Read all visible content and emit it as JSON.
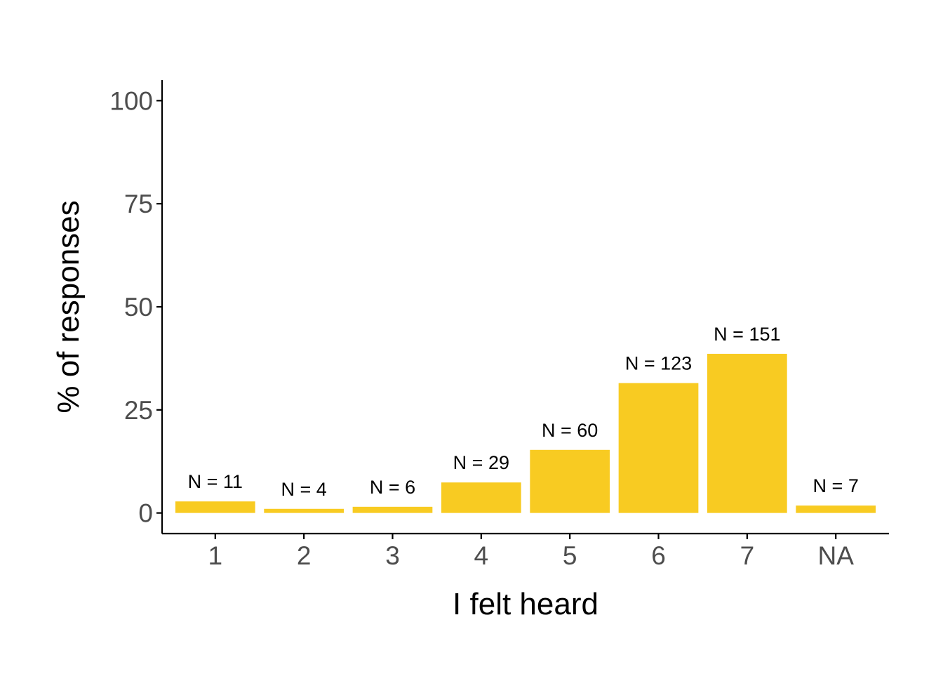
{
  "chart_data": {
    "type": "bar",
    "title": "",
    "xlabel": "I felt heard",
    "ylabel": "% of responses",
    "categories": [
      "1",
      "2",
      "3",
      "4",
      "5",
      "6",
      "7",
      "NA"
    ],
    "values": [
      2.8,
      1.0,
      1.5,
      7.4,
      15.3,
      31.5,
      38.6,
      1.8
    ],
    "data_labels": [
      "N = 11",
      "N = 4",
      "N = 6",
      "N = 29",
      "N = 60",
      "N = 123",
      "N = 151",
      "N = 7"
    ],
    "ylim": [
      -5,
      105
    ],
    "yticks": [
      0,
      25,
      50,
      75,
      100
    ],
    "grid": false,
    "legend": "none",
    "colors": {
      "bar": "#F8CB22",
      "axis": "#000000",
      "tick_text": "#4d4d4d",
      "label_text": "#000000"
    }
  }
}
